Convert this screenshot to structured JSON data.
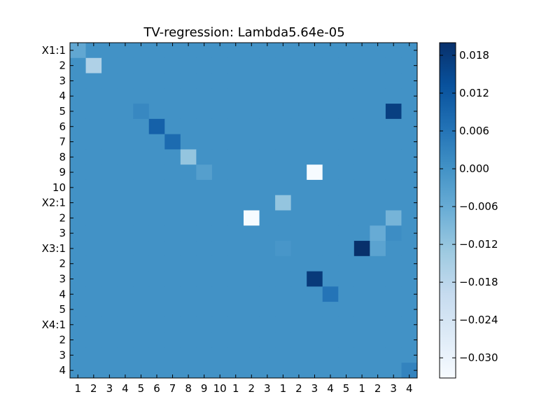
{
  "chart_data": {
    "type": "heatmap",
    "title": "TV-regression: Lambda5.64e-05",
    "xlabel": "",
    "ylabel": "",
    "y_tick_labels": [
      "X1:1",
      "2",
      "3",
      "4",
      "5",
      "6",
      "7",
      "8",
      "9",
      "10",
      "X2:1",
      "2",
      "3",
      "X3:1",
      "2",
      "3",
      "4",
      "5",
      "X4:1",
      "2",
      "3",
      "4"
    ],
    "x_tick_labels": [
      "1",
      "2",
      "3",
      "4",
      "5",
      "6",
      "7",
      "8",
      "9",
      "10",
      "1",
      "2",
      "3",
      "1",
      "2",
      "3",
      "4",
      "5",
      "1",
      "2",
      "3",
      "4"
    ],
    "colormap": "Blues",
    "colorbar": {
      "vmin": -0.0332,
      "vmax": 0.02,
      "ticks": [
        0.018,
        0.012,
        0.006,
        0.0,
        -0.006,
        -0.012,
        -0.018,
        -0.024,
        -0.03
      ],
      "tick_labels": [
        "0.018",
        "0.012",
        "0.006",
        "0.000",
        "−0.006",
        "−0.012",
        "−0.018",
        "−0.024",
        "−0.030"
      ]
    },
    "background_value": 0.0,
    "nonzero_cells": [
      {
        "row": 0,
        "col": 0,
        "value": -0.005
      },
      {
        "row": 1,
        "col": 1,
        "value": -0.016
      },
      {
        "row": 4,
        "col": 4,
        "value": 0.002
      },
      {
        "row": 4,
        "col": 20,
        "value": 0.017
      },
      {
        "row": 5,
        "col": 5,
        "value": 0.01
      },
      {
        "row": 6,
        "col": 6,
        "value": 0.008
      },
      {
        "row": 7,
        "col": 7,
        "value": -0.012
      },
      {
        "row": 8,
        "col": 8,
        "value": -0.003
      },
      {
        "row": 8,
        "col": 15,
        "value": -0.033
      },
      {
        "row": 10,
        "col": 13,
        "value": -0.012
      },
      {
        "row": 11,
        "col": 11,
        "value": -0.033
      },
      {
        "row": 11,
        "col": 20,
        "value": -0.008
      },
      {
        "row": 12,
        "col": 19,
        "value": -0.006
      },
      {
        "row": 12,
        "col": 20,
        "value": 0.001
      },
      {
        "row": 13,
        "col": 13,
        "value": -0.001
      },
      {
        "row": 13,
        "col": 18,
        "value": 0.02
      },
      {
        "row": 13,
        "col": 19,
        "value": -0.004
      },
      {
        "row": 15,
        "col": 15,
        "value": 0.018
      },
      {
        "row": 16,
        "col": 16,
        "value": 0.006
      },
      {
        "row": 21,
        "col": 21,
        "value": 0.003
      }
    ]
  }
}
